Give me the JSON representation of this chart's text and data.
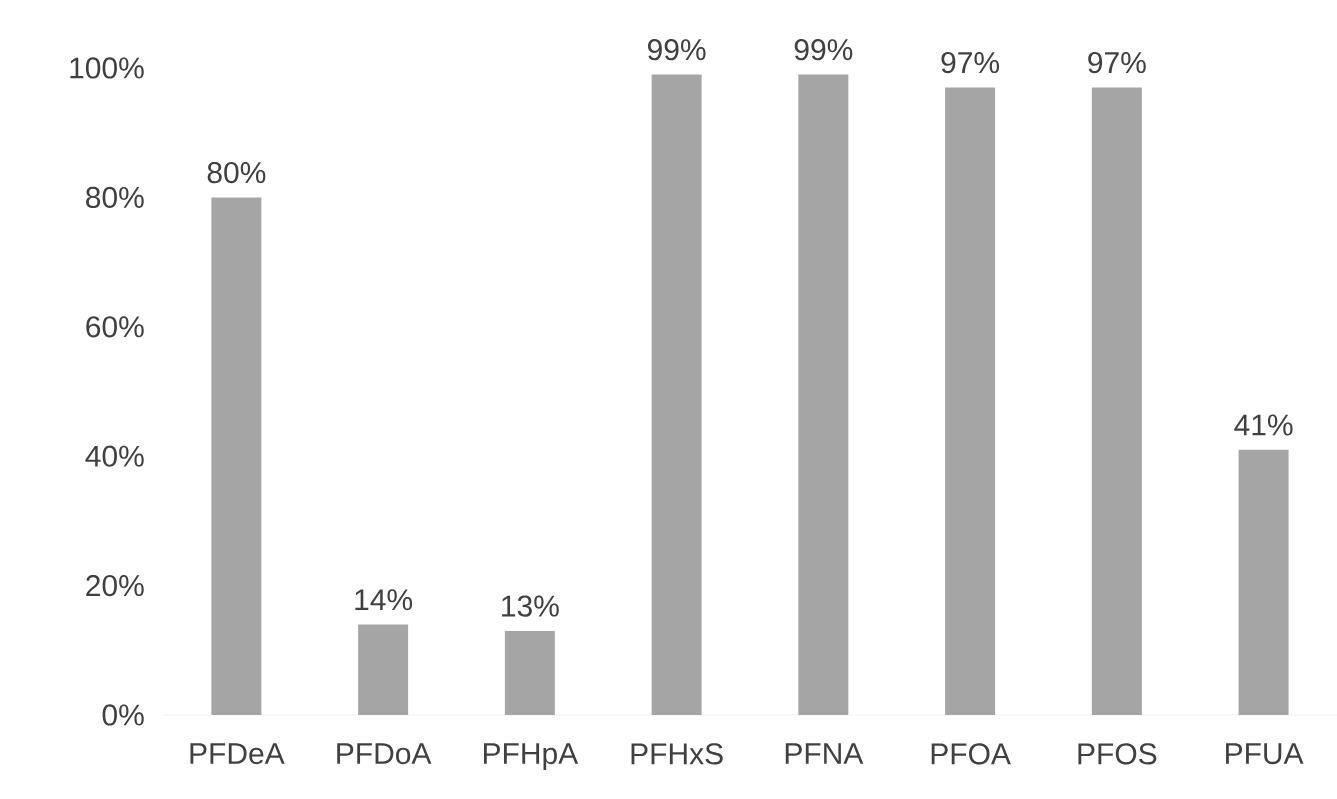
{
  "chart_data": {
    "type": "bar",
    "categories": [
      "PFDeA",
      "PFDoA",
      "PFHpA",
      "PFHxS",
      "PFNA",
      "PFOA",
      "PFOS",
      "PFUA"
    ],
    "values": [
      80,
      14,
      13,
      99,
      99,
      97,
      97,
      41
    ],
    "value_labels": [
      "80%",
      "14%",
      "13%",
      "99%",
      "99%",
      "97%",
      "97%",
      "41%"
    ],
    "color": "#a5a5a5",
    "ylim": [
      0,
      100
    ],
    "yticks": [
      {
        "value": 0,
        "label": "0%"
      },
      {
        "value": 20,
        "label": "20%"
      },
      {
        "value": 40,
        "label": "40%"
      },
      {
        "value": 60,
        "label": "60%"
      },
      {
        "value": 80,
        "label": "80%"
      },
      {
        "value": 100,
        "label": "100%"
      }
    ],
    "grid": false
  }
}
